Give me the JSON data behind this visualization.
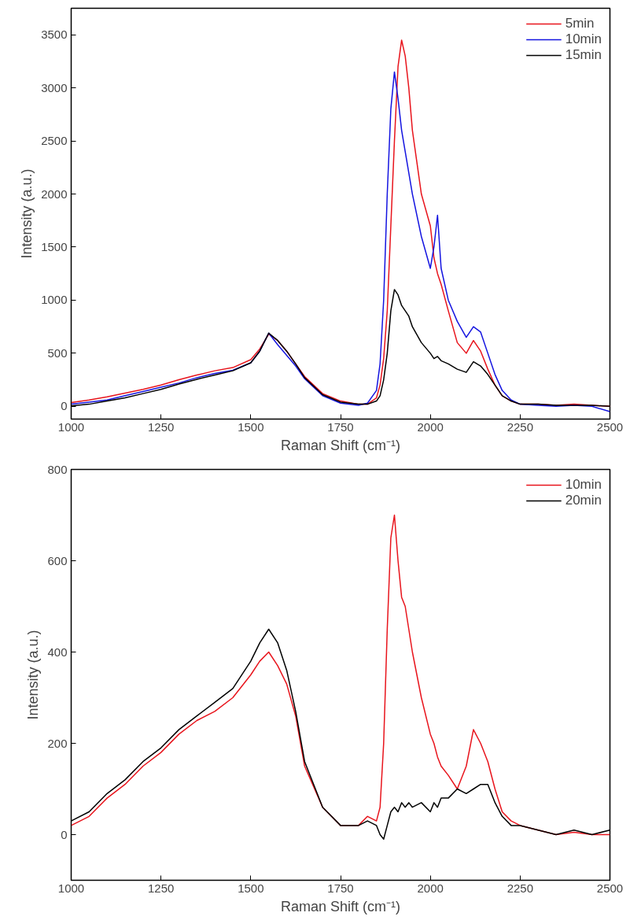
{
  "chart_data": [
    {
      "type": "line",
      "xlabel": "Raman Shift (cm⁻¹)",
      "ylabel": "Intensity (a.u.)",
      "xlim": [
        1000,
        2500
      ],
      "ylim": [
        -120,
        3750
      ],
      "xticks": [
        1000,
        1250,
        1500,
        1750,
        2000,
        2250,
        2500
      ],
      "yticks": [
        0,
        500,
        1000,
        1500,
        2000,
        2500,
        3000,
        3500
      ],
      "grid": false,
      "legend": "top right",
      "marker": "none",
      "line_style": "solid",
      "x": [
        1000,
        1050,
        1100,
        1150,
        1200,
        1250,
        1300,
        1350,
        1400,
        1450,
        1500,
        1525,
        1550,
        1575,
        1600,
        1625,
        1650,
        1700,
        1750,
        1800,
        1825,
        1850,
        1860,
        1870,
        1880,
        1890,
        1900,
        1910,
        1920,
        1930,
        1940,
        1950,
        1975,
        2000,
        2010,
        2020,
        2030,
        2050,
        2075,
        2100,
        2120,
        2140,
        2160,
        2180,
        2200,
        2225,
        2250,
        2300,
        2350,
        2400,
        2450,
        2500
      ],
      "series": [
        {
          "name": "5min",
          "color": "#e8141c",
          "values": [
            35,
            60,
            90,
            125,
            160,
            200,
            250,
            295,
            335,
            365,
            440,
            540,
            680,
            620,
            520,
            400,
            280,
            120,
            50,
            20,
            20,
            80,
            200,
            450,
            900,
            1700,
            2500,
            3200,
            3450,
            3300,
            3000,
            2600,
            2000,
            1700,
            1400,
            1250,
            1150,
            900,
            600,
            500,
            620,
            520,
            350,
            200,
            100,
            50,
            20,
            20,
            10,
            20,
            10,
            0
          ]
        },
        {
          "name": "10min",
          "color": "#1414e0",
          "values": [
            20,
            40,
            60,
            100,
            140,
            180,
            220,
            270,
            310,
            340,
            410,
            520,
            690,
            580,
            480,
            380,
            260,
            100,
            30,
            10,
            30,
            150,
            400,
            1000,
            2000,
            2800,
            3150,
            2900,
            2600,
            2400,
            2200,
            2000,
            1600,
            1300,
            1500,
            1800,
            1300,
            1000,
            800,
            650,
            750,
            700,
            500,
            300,
            150,
            60,
            20,
            10,
            0,
            10,
            0,
            -50
          ]
        },
        {
          "name": "15min",
          "color": "#000000",
          "values": [
            5,
            20,
            50,
            80,
            120,
            160,
            210,
            255,
            295,
            335,
            410,
            520,
            690,
            620,
            520,
            400,
            270,
            110,
            40,
            20,
            20,
            50,
            100,
            250,
            500,
            900,
            1100,
            1050,
            950,
            900,
            850,
            750,
            600,
            500,
            450,
            470,
            430,
            400,
            350,
            320,
            420,
            380,
            300,
            200,
            100,
            50,
            20,
            20,
            10,
            10,
            10,
            0
          ]
        }
      ]
    },
    {
      "type": "line",
      "xlabel": "Raman Shift (cm⁻¹)",
      "ylabel": "Intensity (a.u.)",
      "xlim": [
        1000,
        2500
      ],
      "ylim": [
        -100,
        800
      ],
      "xticks": [
        1000,
        1250,
        1500,
        1750,
        2000,
        2250,
        2500
      ],
      "yticks": [
        0,
        200,
        400,
        600,
        800
      ],
      "grid": false,
      "legend": "top right",
      "marker": "none",
      "line_style": "solid",
      "x": [
        1000,
        1050,
        1100,
        1150,
        1200,
        1250,
        1300,
        1350,
        1400,
        1450,
        1500,
        1525,
        1550,
        1575,
        1600,
        1625,
        1650,
        1700,
        1750,
        1800,
        1825,
        1850,
        1860,
        1870,
        1880,
        1890,
        1900,
        1910,
        1920,
        1930,
        1940,
        1950,
        1975,
        2000,
        2010,
        2020,
        2030,
        2050,
        2075,
        2100,
        2120,
        2140,
        2160,
        2180,
        2200,
        2225,
        2250,
        2300,
        2350,
        2400,
        2450,
        2500
      ],
      "series": [
        {
          "name": "10min",
          "color": "#e8141c",
          "values": [
            20,
            40,
            80,
            110,
            150,
            180,
            220,
            250,
            270,
            300,
            350,
            380,
            400,
            370,
            330,
            260,
            150,
            60,
            20,
            20,
            40,
            30,
            60,
            200,
            450,
            650,
            700,
            600,
            520,
            500,
            450,
            400,
            300,
            220,
            200,
            170,
            150,
            130,
            100,
            150,
            230,
            200,
            160,
            100,
            50,
            30,
            20,
            10,
            0,
            5,
            0,
            0
          ]
        },
        {
          "name": "20min",
          "color": "#000000",
          "values": [
            30,
            50,
            90,
            120,
            160,
            190,
            230,
            260,
            290,
            320,
            380,
            420,
            450,
            420,
            360,
            270,
            160,
            60,
            20,
            20,
            30,
            20,
            0,
            -10,
            20,
            50,
            60,
            50,
            70,
            60,
            70,
            60,
            70,
            50,
            70,
            60,
            80,
            80,
            100,
            90,
            100,
            110,
            110,
            70,
            40,
            20,
            20,
            10,
            0,
            10,
            0,
            10
          ]
        }
      ]
    }
  ]
}
